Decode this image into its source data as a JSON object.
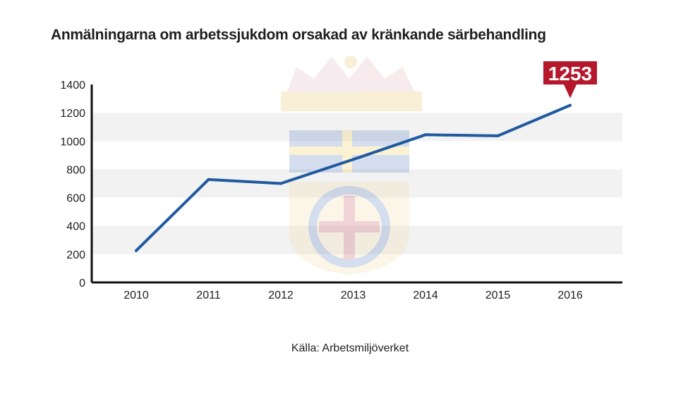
{
  "chart_data": {
    "type": "line",
    "title": "Anmälningarna om arbetssjukdom orsakad av kränkande särbehandling",
    "xlabel": "",
    "ylabel": "",
    "x": [
      "2010",
      "2011",
      "2012",
      "2013",
      "2014",
      "2015",
      "2016"
    ],
    "series": [
      {
        "values": [
          225,
          728,
          700,
          870,
          1045,
          1037,
          1253
        ]
      }
    ],
    "ylim": [
      0,
      1400
    ],
    "yticks": [
      0,
      200,
      400,
      600,
      800,
      1000,
      1200,
      1400
    ],
    "grid": "alternating horizontal bands",
    "annotation": {
      "label": "1253",
      "category": "2016"
    },
    "colors": {
      "line": "#1f5aa0",
      "callout": "#b5182b",
      "band": "#f2f2f2",
      "axis": "#111111"
    }
  },
  "source": "Källa: Arbetsmiljöverket"
}
